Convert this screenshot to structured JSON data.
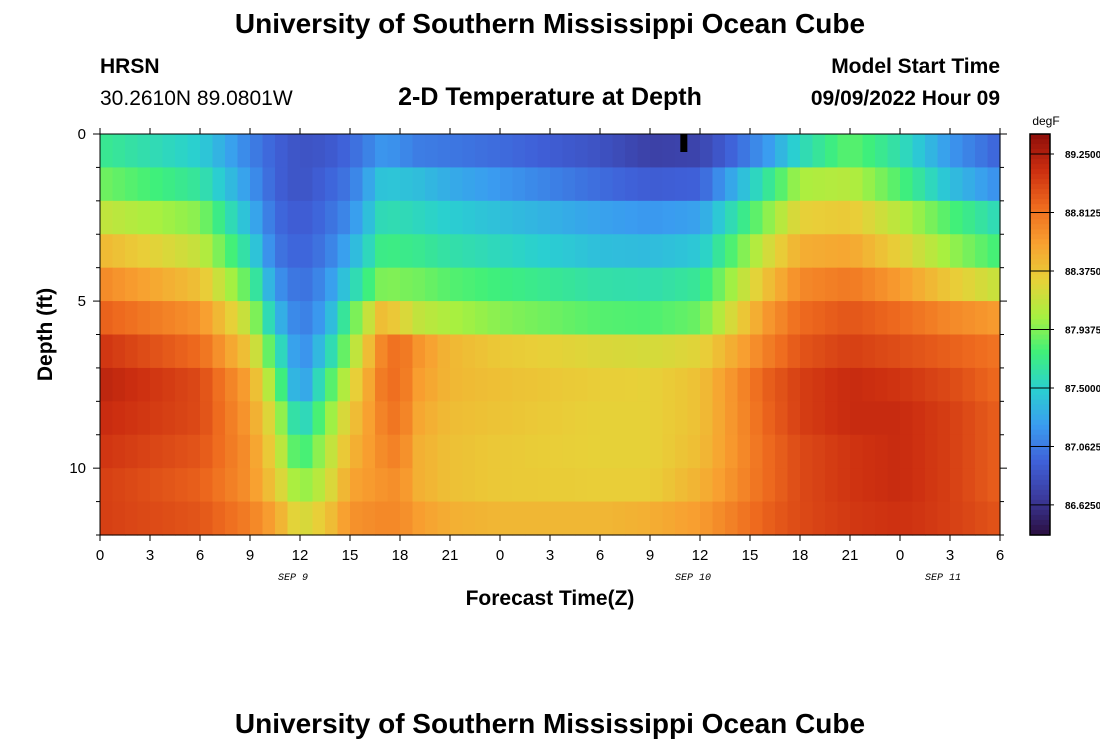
{
  "header": {
    "title": "University of Southern Mississippi Ocean Cube",
    "station": "HRSN",
    "coords": "30.2610N  89.0801W",
    "subtitle": "2-D Temperature at Depth",
    "model_label": "Model Start Time",
    "model_time": "09/09/2022 Hour 09"
  },
  "footer": {
    "title": "University of Southern Mississippi Ocean Cube"
  },
  "chart_data": {
    "type": "heatmap",
    "title": "2-D Temperature at Depth",
    "xlabel": "Forecast Time(Z)",
    "ylabel": "Depth (ft)",
    "xlim": [
      0,
      54
    ],
    "ylim": [
      12,
      0
    ],
    "x_tick_labels": [
      "0",
      "3",
      "6",
      "9",
      "12",
      "15",
      "18",
      "21",
      "0",
      "3",
      "6",
      "9",
      "12",
      "15",
      "18",
      "21",
      "0",
      "3",
      "6"
    ],
    "date_labels": [
      {
        "x": 12,
        "label": "SEP 9"
      },
      {
        "x": 36,
        "label": "SEP 10"
      },
      {
        "x": 51,
        "label": "SEP 11"
      }
    ],
    "y_ticks": [
      0,
      5,
      10
    ],
    "colorbar": {
      "unit": "degF",
      "min": 86.4,
      "max": 89.4,
      "labels": [
        "89.2500",
        "88.8125",
        "88.3750",
        "87.9375",
        "87.5000",
        "87.0625",
        "86.6250"
      ],
      "colors": [
        "#2a0e3f",
        "#3b3a9c",
        "#3f60d8",
        "#3a9cf0",
        "#2ad0d0",
        "#3ff07a",
        "#a8f040",
        "#e8d038",
        "#f8a030",
        "#ee6a1e",
        "#cc2e10",
        "#8e0e0a"
      ]
    },
    "depth_layers_ft": [
      0.5,
      1.5,
      2.5,
      3.5,
      4.5,
      5.5,
      6.5,
      7.5,
      8.5,
      9.5,
      10.5,
      11.5
    ],
    "time_hours": [
      0,
      6,
      9,
      10.5,
      12,
      13.5,
      15,
      17,
      18,
      19,
      21,
      24,
      30,
      33,
      36,
      40,
      42,
      45,
      48,
      51,
      54
    ],
    "values_degF": [
      [
        87.7,
        87.48,
        87.1,
        86.95,
        86.85,
        86.88,
        86.98,
        87.2,
        87.15,
        87.08,
        87.05,
        87.0,
        86.85,
        86.72,
        86.75,
        87.2,
        87.55,
        87.85,
        87.6,
        87.2,
        86.95
      ],
      [
        87.9,
        87.65,
        87.2,
        86.95,
        86.85,
        86.95,
        87.05,
        87.45,
        87.42,
        87.4,
        87.3,
        87.2,
        87.0,
        86.92,
        86.95,
        87.65,
        88.05,
        88.1,
        87.8,
        87.4,
        87.15
      ],
      [
        88.15,
        87.95,
        87.35,
        87.0,
        86.9,
        87.0,
        87.15,
        87.6,
        87.58,
        87.55,
        87.48,
        87.4,
        87.25,
        87.2,
        87.25,
        87.95,
        88.3,
        88.35,
        88.1,
        87.8,
        87.55
      ],
      [
        88.45,
        88.15,
        87.55,
        87.05,
        86.95,
        87.05,
        87.3,
        87.75,
        87.72,
        87.7,
        87.62,
        87.55,
        87.4,
        87.38,
        87.45,
        88.2,
        88.5,
        88.55,
        88.3,
        88.0,
        87.75
      ],
      [
        88.7,
        88.4,
        87.8,
        87.2,
        87.0,
        87.15,
        87.5,
        87.95,
        87.92,
        87.9,
        87.82,
        87.75,
        87.62,
        87.6,
        87.68,
        88.4,
        88.7,
        88.78,
        88.6,
        88.35,
        88.15
      ],
      [
        88.9,
        88.65,
        88.1,
        87.4,
        87.05,
        87.25,
        87.8,
        88.45,
        88.3,
        88.15,
        88.05,
        87.95,
        87.82,
        87.8,
        87.88,
        88.62,
        88.85,
        88.95,
        88.85,
        88.7,
        88.6
      ],
      [
        89.1,
        88.85,
        88.35,
        87.7,
        87.1,
        87.45,
        88.0,
        88.75,
        88.85,
        88.65,
        88.45,
        88.35,
        88.25,
        88.22,
        88.28,
        88.75,
        88.95,
        89.05,
        88.98,
        88.9,
        88.8
      ],
      [
        89.2,
        89.0,
        88.55,
        87.95,
        87.15,
        87.7,
        88.2,
        88.8,
        88.85,
        88.6,
        88.45,
        88.4,
        88.32,
        88.3,
        88.4,
        88.9,
        89.05,
        89.15,
        89.1,
        89.0,
        88.85
      ],
      [
        89.15,
        89.0,
        88.6,
        88.15,
        87.45,
        87.9,
        88.35,
        88.75,
        88.82,
        88.55,
        88.42,
        88.38,
        88.3,
        88.3,
        88.4,
        88.88,
        89.05,
        89.15,
        89.15,
        89.05,
        88.9
      ],
      [
        89.1,
        88.95,
        88.65,
        88.25,
        87.7,
        88.05,
        88.45,
        88.7,
        88.75,
        88.5,
        88.4,
        88.35,
        88.3,
        88.3,
        88.42,
        88.85,
        89.0,
        89.1,
        89.15,
        89.05,
        88.9
      ],
      [
        89.05,
        88.9,
        88.65,
        88.35,
        87.95,
        88.15,
        88.55,
        88.65,
        88.68,
        88.5,
        88.4,
        88.35,
        88.32,
        88.32,
        88.48,
        88.85,
        89.0,
        89.1,
        89.15,
        89.05,
        88.9
      ],
      [
        89.05,
        88.95,
        88.75,
        88.55,
        88.2,
        88.35,
        88.65,
        88.7,
        88.7,
        88.6,
        88.5,
        88.45,
        88.45,
        88.5,
        88.6,
        88.9,
        89.0,
        89.08,
        89.12,
        89.05,
        88.95
      ]
    ]
  }
}
